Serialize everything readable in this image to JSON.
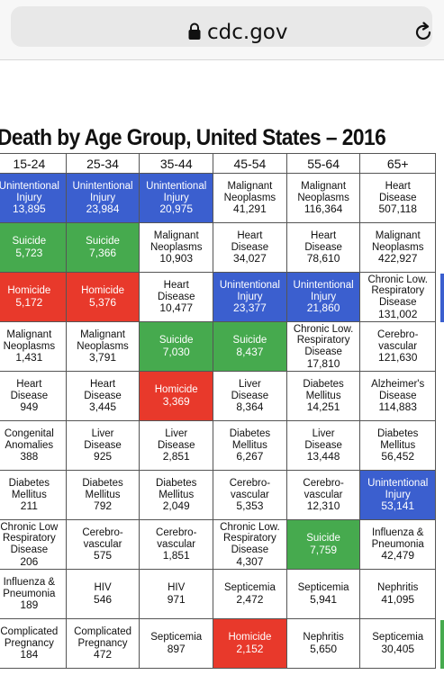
{
  "browser": {
    "domain": "cdc.gov"
  },
  "page": {
    "title": "Death by Age Group, United States – 2016"
  },
  "colors": {
    "unintentional_injury": "#3b5fcf",
    "suicide": "#46aa4e",
    "homicide": "#e8392b"
  },
  "table": {
    "headers": [
      "15-24",
      "25-34",
      "35-44",
      "45-54",
      "55-64",
      "65+"
    ],
    "rows": [
      [
        {
          "cause": "Unintentional\nInjury",
          "count": "13,895",
          "color": "blue"
        },
        {
          "cause": "Unintentional\nInjury",
          "count": "23,984",
          "color": "blue"
        },
        {
          "cause": "Unintentional\nInjury",
          "count": "20,975",
          "color": "blue"
        },
        {
          "cause": "Malignant\nNeoplasms",
          "count": "41,291",
          "color": ""
        },
        {
          "cause": "Malignant\nNeoplasms",
          "count": "116,364",
          "color": ""
        },
        {
          "cause": "Heart\nDisease",
          "count": "507,118",
          "color": ""
        }
      ],
      [
        {
          "cause": "Suicide",
          "count": "5,723",
          "color": "green"
        },
        {
          "cause": "Suicide",
          "count": "7,366",
          "color": "green"
        },
        {
          "cause": "Malignant\nNeoplasms",
          "count": "10,903",
          "color": ""
        },
        {
          "cause": "Heart\nDisease",
          "count": "34,027",
          "color": ""
        },
        {
          "cause": "Heart\nDisease",
          "count": "78,610",
          "color": ""
        },
        {
          "cause": "Malignant\nNeoplasms",
          "count": "422,927",
          "color": ""
        }
      ],
      [
        {
          "cause": "Homicide",
          "count": "5,172",
          "color": "red"
        },
        {
          "cause": "Homicide",
          "count": "5,376",
          "color": "red"
        },
        {
          "cause": "Heart\nDisease",
          "count": "10,477",
          "color": ""
        },
        {
          "cause": "Unintentional\nInjury",
          "count": "23,377",
          "color": "blue"
        },
        {
          "cause": "Unintentional\nInjury",
          "count": "21,860",
          "color": "blue"
        },
        {
          "cause": "Chronic Low.\nRespiratory\nDisease",
          "count": "131,002",
          "color": ""
        }
      ],
      [
        {
          "cause": "Malignant\nNeoplasms",
          "count": "1,431",
          "color": ""
        },
        {
          "cause": "Malignant\nNeoplasms",
          "count": "3,791",
          "color": ""
        },
        {
          "cause": "Suicide",
          "count": "7,030",
          "color": "green"
        },
        {
          "cause": "Suicide",
          "count": "8,437",
          "color": "green"
        },
        {
          "cause": "Chronic Low.\nRespiratory\nDisease",
          "count": "17,810",
          "color": ""
        },
        {
          "cause": "Cerebro-\nvascular",
          "count": "121,630",
          "color": ""
        }
      ],
      [
        {
          "cause": "Heart\nDisease",
          "count": "949",
          "color": ""
        },
        {
          "cause": "Heart\nDisease",
          "count": "3,445",
          "color": ""
        },
        {
          "cause": "Homicide",
          "count": "3,369",
          "color": "red"
        },
        {
          "cause": "Liver\nDisease",
          "count": "8,364",
          "color": ""
        },
        {
          "cause": "Diabetes\nMellitus",
          "count": "14,251",
          "color": ""
        },
        {
          "cause": "Alzheimer's\nDisease",
          "count": "114,883",
          "color": ""
        }
      ],
      [
        {
          "cause": "Congenital\nAnomalies",
          "count": "388",
          "color": ""
        },
        {
          "cause": "Liver\nDisease",
          "count": "925",
          "color": ""
        },
        {
          "cause": "Liver\nDisease",
          "count": "2,851",
          "color": ""
        },
        {
          "cause": "Diabetes\nMellitus",
          "count": "6,267",
          "color": ""
        },
        {
          "cause": "Liver\nDisease",
          "count": "13,448",
          "color": ""
        },
        {
          "cause": "Diabetes\nMellitus",
          "count": "56,452",
          "color": ""
        }
      ],
      [
        {
          "cause": "Diabetes\nMellitus",
          "count": "211",
          "color": ""
        },
        {
          "cause": "Diabetes\nMellitus",
          "count": "792",
          "color": ""
        },
        {
          "cause": "Diabetes\nMellitus",
          "count": "2,049",
          "color": ""
        },
        {
          "cause": "Cerebro-\nvascular",
          "count": "5,353",
          "color": ""
        },
        {
          "cause": "Cerebro-\nvascular",
          "count": "12,310",
          "color": ""
        },
        {
          "cause": "Unintentional\nInjury",
          "count": "53,141",
          "color": "blue"
        }
      ],
      [
        {
          "cause": "Chronic Low\nRespiratory\nDisease",
          "count": "206",
          "color": ""
        },
        {
          "cause": "Cerebro-\nvascular",
          "count": "575",
          "color": ""
        },
        {
          "cause": "Cerebro-\nvascular",
          "count": "1,851",
          "color": ""
        },
        {
          "cause": "Chronic Low.\nRespiratory\nDisease",
          "count": "4,307",
          "color": ""
        },
        {
          "cause": "Suicide",
          "count": "7,759",
          "color": "green"
        },
        {
          "cause": "Influenza &\nPneumonia",
          "count": "42,479",
          "color": ""
        }
      ],
      [
        {
          "cause": "Influenza &\nPneumonia",
          "count": "189",
          "color": ""
        },
        {
          "cause": "HIV",
          "count": "546",
          "color": ""
        },
        {
          "cause": "HIV",
          "count": "971",
          "color": ""
        },
        {
          "cause": "Septicemia",
          "count": "2,472",
          "color": ""
        },
        {
          "cause": "Septicemia",
          "count": "5,941",
          "color": ""
        },
        {
          "cause": "Nephritis",
          "count": "41,095",
          "color": ""
        }
      ],
      [
        {
          "cause": "Complicated\nPregnancy",
          "count": "184",
          "color": ""
        },
        {
          "cause": "Complicated\nPregnancy",
          "count": "472",
          "color": ""
        },
        {
          "cause": "Septicemia",
          "count": "897",
          "color": ""
        },
        {
          "cause": "Homicide",
          "count": "2,152",
          "color": "red"
        },
        {
          "cause": "Nephritis",
          "count": "5,650",
          "color": ""
        },
        {
          "cause": "Septicemia",
          "count": "30,405",
          "color": ""
        }
      ]
    ]
  }
}
